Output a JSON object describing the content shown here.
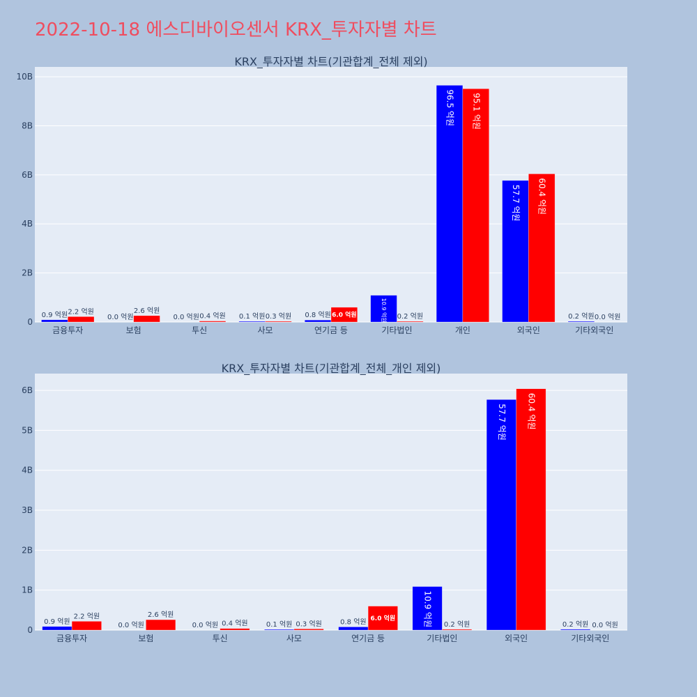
{
  "page": {
    "title": "2022-10-18 에스디바이오센서 KRX_투자자별 차트"
  },
  "colors": {
    "page_bg": "#b0c4de",
    "plot_bg": "#e5ecf6",
    "title": "#ef4d5f",
    "sell": "#0000ff",
    "buy": "#ff0000",
    "text": "#2a3f5f"
  },
  "chart_data": [
    {
      "type": "bar",
      "title": "KRX_투자자별 차트(기관합계_전체 제외)",
      "categories": [
        "금융투자",
        "보험",
        "투신",
        "사모",
        "연기금 등",
        "기타법인",
        "개인",
        "외국인",
        "기타외국인"
      ],
      "series": [
        {
          "color": "#0000ff",
          "values": [
            90000000,
            0,
            0,
            10000000,
            80000000,
            1090000000,
            9650000000,
            5770000000,
            20000000
          ],
          "labels": [
            "0.9 억원",
            "0.0 억원",
            "0.0 억원",
            "0.1 억원",
            "0.8 억원",
            "10.9 억원",
            "96.5 억원",
            "57.7 억원",
            "0.2 억원"
          ]
        },
        {
          "color": "#ff0000",
          "values": [
            220000000,
            260000000,
            40000000,
            30000000,
            600000000,
            20000000,
            9510000000,
            6040000000,
            0
          ],
          "labels": [
            "2.2 억원",
            "2.6 억원",
            "0.4 억원",
            "0.3 억원",
            "6.0 억원",
            "0.2 억원",
            "95.1 억원",
            "60.4 억원",
            "0.0 억원"
          ]
        }
      ],
      "ylim": [
        0,
        10400000000
      ],
      "yticks": [
        0,
        2000000000,
        4000000000,
        6000000000,
        8000000000,
        10000000000
      ],
      "ytick_labels": [
        "0",
        "2B",
        "4B",
        "6B",
        "8B",
        "10B"
      ],
      "grid": true,
      "barmode": "group"
    },
    {
      "type": "bar",
      "title": "KRX_투자자별 차트(기관합계_전체_개인 제외)",
      "categories": [
        "금융투자",
        "보험",
        "투신",
        "사모",
        "연기금 등",
        "기타법인",
        "외국인",
        "기타외국인"
      ],
      "series": [
        {
          "color": "#0000ff",
          "values": [
            90000000,
            0,
            0,
            10000000,
            80000000,
            1090000000,
            5770000000,
            20000000
          ],
          "labels": [
            "0.9 억원",
            "0.0 억원",
            "0.0 억원",
            "0.1 억원",
            "0.8 억원",
            "10.9 억원",
            "57.7 억원",
            "0.2 억원"
          ]
        },
        {
          "color": "#ff0000",
          "values": [
            220000000,
            260000000,
            40000000,
            30000000,
            600000000,
            20000000,
            6040000000,
            0
          ],
          "labels": [
            "2.2 억원",
            "2.6 억원",
            "0.4 억원",
            "0.3 억원",
            "6.0 억원",
            "0.2 억원",
            "60.4 억원",
            "0.0 억원"
          ]
        }
      ],
      "ylim": [
        0,
        6420000000
      ],
      "yticks": [
        0,
        1000000000,
        2000000000,
        3000000000,
        4000000000,
        5000000000,
        6000000000
      ],
      "ytick_labels": [
        "0",
        "1B",
        "2B",
        "3B",
        "4B",
        "5B",
        "6B"
      ],
      "grid": true,
      "barmode": "group"
    }
  ]
}
